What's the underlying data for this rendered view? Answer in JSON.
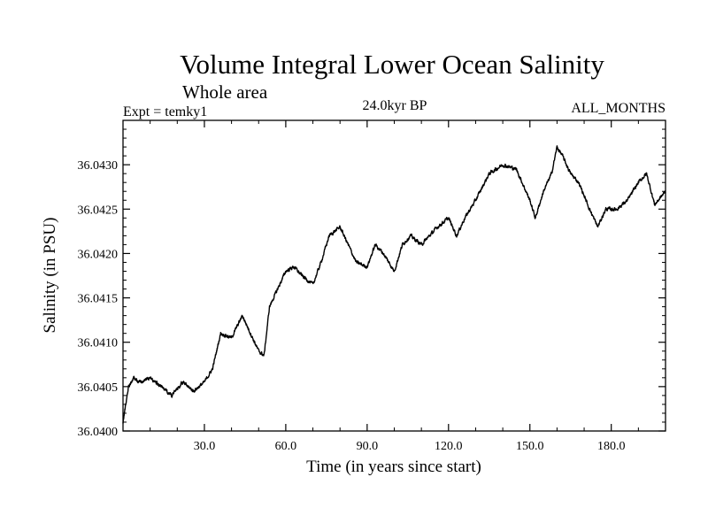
{
  "chart_data": {
    "type": "line",
    "title": "Volume Integral Lower Ocean Salinity",
    "subtitle": "Whole area",
    "left_note": "Expt = temky1",
    "center_note": "24.0kyr BP",
    "right_note": "ALL_MONTHS",
    "xlabel": "Time (in years since start)",
    "ylabel": "Salinity (in PSU)",
    "xlim": [
      0,
      200
    ],
    "ylim": [
      36.04,
      36.0435
    ],
    "xticks": [
      30,
      60,
      90,
      120,
      150,
      180
    ],
    "xtick_labels": [
      "30.0",
      "60.0",
      "90.0",
      "120.0",
      "150.0",
      "180.0"
    ],
    "yticks": [
      36.04,
      36.0405,
      36.041,
      36.0415,
      36.042,
      36.0425,
      36.043
    ],
    "ytick_labels": [
      "36.0400",
      "36.0405",
      "36.0410",
      "36.0415",
      "36.0420",
      "36.0425",
      "36.0430"
    ],
    "grid": false,
    "series": [
      {
        "name": "Salinity",
        "color": "#000000",
        "noise": 3e-05,
        "x": [
          0,
          2,
          4,
          6,
          10,
          14,
          18,
          22,
          26,
          30,
          33,
          36,
          40,
          44,
          47,
          50,
          52,
          54,
          57,
          60,
          63,
          66,
          70,
          73,
          76,
          80,
          83,
          86,
          90,
          93,
          96,
          100,
          103,
          106,
          110,
          113,
          116,
          120,
          123,
          126,
          130,
          135,
          140,
          145,
          150,
          152,
          155,
          158,
          160,
          162,
          165,
          168,
          172,
          175,
          178,
          182,
          186,
          190,
          193,
          196,
          200
        ],
        "y": [
          36.0401,
          36.0405,
          36.0406,
          36.04055,
          36.0406,
          36.0405,
          36.0404,
          36.04055,
          36.04045,
          36.04055,
          36.0407,
          36.0411,
          36.04105,
          36.0413,
          36.0411,
          36.0409,
          36.04085,
          36.0414,
          36.0416,
          36.0418,
          36.04185,
          36.04175,
          36.04165,
          36.0419,
          36.0422,
          36.0423,
          36.0421,
          36.0419,
          36.04185,
          36.0421,
          36.042,
          36.0418,
          36.0421,
          36.0422,
          36.0421,
          36.0422,
          36.0423,
          36.0424,
          36.0422,
          36.0424,
          36.0426,
          36.0429,
          36.043,
          36.04295,
          36.0426,
          36.0424,
          36.0427,
          36.0429,
          36.0432,
          36.0431,
          36.0429,
          36.0428,
          36.0425,
          36.0423,
          36.0425,
          36.0425,
          36.0426,
          36.0428,
          36.0429,
          36.04255,
          36.0427
        ]
      }
    ]
  }
}
